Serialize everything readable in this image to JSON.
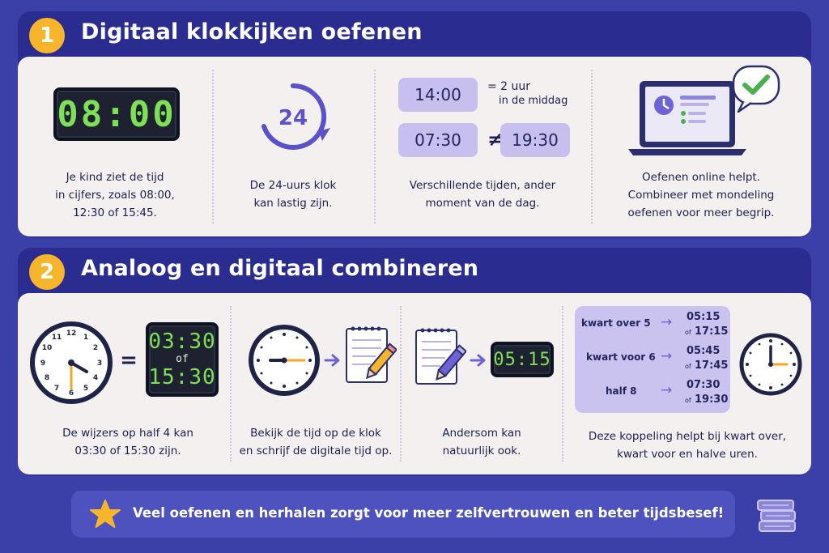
{
  "section1": {
    "number": "1",
    "title": "Digitaal klokkijken oefenen",
    "col1": {
      "clock_display": "08:00",
      "caption": [
        "Je kind ziet de tijd",
        "in cijfers, zoals 08:00,",
        "12:30 of 15:45."
      ]
    },
    "col2": {
      "icon_number": "24",
      "caption": [
        "De 24-uurs klok",
        "kan lastig zijn."
      ]
    },
    "col3": {
      "time_a": "14:00",
      "equals_note_line1": "= 2 uur",
      "equals_note_line2": "in de middag",
      "time_b": "07:30",
      "not_equal": "≠",
      "time_c": "19:30",
      "caption": [
        "Verschillende tijden, ander",
        "moment van de dag."
      ]
    },
    "col4": {
      "caption": [
        "Oefenen online helpt.",
        "Combineer met mondeling",
        "oefenen voor meer begrip."
      ]
    }
  },
  "section2": {
    "number": "2",
    "title": "Analoog en digitaal combineren",
    "col1": {
      "equals": "=",
      "display_top": "03:30",
      "display_of": "of",
      "display_bottom": "15:30",
      "clock_numbers": [
        "12",
        "1",
        "2",
        "3",
        "4",
        "5",
        "6",
        "7",
        "8",
        "9",
        "10",
        "11"
      ],
      "caption": [
        "De wijzers op half 4 kan",
        "03:30 of 15:30 zijn."
      ]
    },
    "col2": {
      "caption": [
        "Bekijk de tijd op de klok",
        "en schrijf de digitale tijd op."
      ]
    },
    "col3": {
      "display": "05:15",
      "caption": [
        "Andersom kan",
        "natuurlijk ook."
      ]
    },
    "col4": {
      "rows": [
        {
          "label": "kwart over 5",
          "time": "05:15",
          "of": "of",
          "alt": "17:15"
        },
        {
          "label": "kwart voor 6",
          "time": "05:45",
          "of": "of",
          "alt": "17:45"
        },
        {
          "label": "half 8",
          "time": "07:30",
          "of": "of",
          "alt": "19:30"
        }
      ],
      "caption": [
        "Deze koppeling helpt bij kwart over,",
        "kwart voor en halve uren."
      ]
    }
  },
  "footer": {
    "text": "Veel oefenen en herhalen zorgt voor meer zelfvertrouwen en beter tijdsbesef!"
  },
  "colors": {
    "background": "#3b3fa8",
    "section_header": "#2a2d8f",
    "panel": "#f3f0ef",
    "badge": "#f6b52b",
    "lcd_green": "#7ee056",
    "lilac": "#c7c0ef",
    "accent_purple": "#5a52c8"
  }
}
